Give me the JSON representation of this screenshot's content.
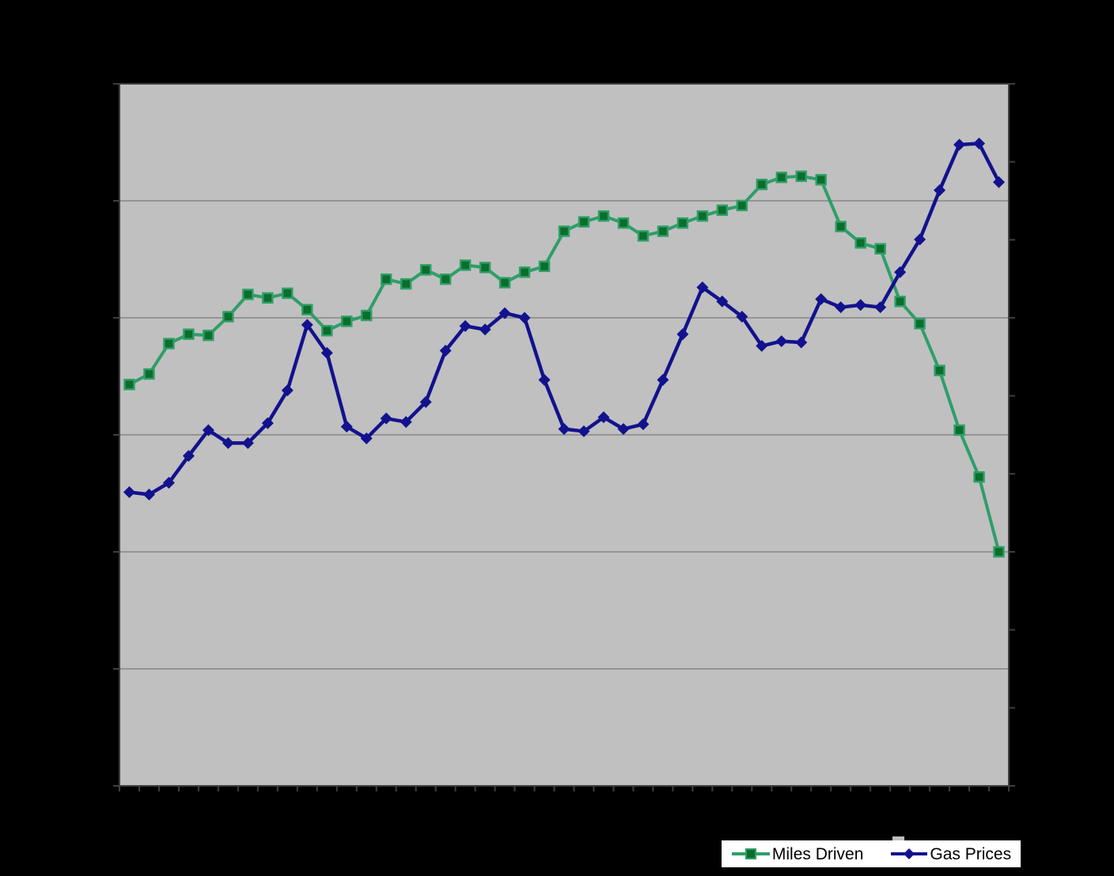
{
  "chart_data": {
    "type": "line",
    "title": "",
    "xlabel": "",
    "ylabel": "",
    "x_count": 45,
    "x_tick_labels_visible": false,
    "y_tick_labels_visible": false,
    "ylim": [
      0,
      6
    ],
    "y_major_divisions": 6,
    "secondary_y_divisions": 9,
    "grid": true,
    "legend_position": "bottom",
    "series": [
      {
        "name": "Miles Driven",
        "marker": "square",
        "values": [
          3.43,
          3.52,
          3.78,
          3.86,
          3.85,
          4.01,
          4.2,
          4.17,
          4.21,
          4.07,
          3.89,
          3.97,
          4.02,
          4.33,
          4.29,
          4.41,
          4.33,
          4.45,
          4.43,
          4.3,
          4.39,
          4.44,
          4.74,
          4.82,
          4.87,
          4.81,
          4.7,
          4.74,
          4.81,
          4.87,
          4.92,
          4.96,
          5.14,
          5.2,
          5.21,
          5.18,
          4.78,
          4.64,
          4.59,
          4.14,
          3.95,
          3.55,
          3.04,
          2.64,
          2.0
        ]
      },
      {
        "name": "Gas Prices",
        "marker": "diamond",
        "values": [
          2.51,
          2.49,
          2.59,
          2.82,
          3.04,
          2.93,
          2.93,
          3.1,
          3.38,
          3.94,
          3.7,
          3.07,
          2.97,
          3.14,
          3.11,
          3.28,
          3.72,
          3.93,
          3.9,
          4.04,
          4.0,
          3.47,
          3.05,
          3.03,
          3.15,
          3.05,
          3.09,
          3.47,
          3.86,
          4.26,
          4.14,
          4.01,
          3.76,
          3.8,
          3.79,
          4.16,
          4.09,
          4.11,
          4.09,
          4.39,
          4.67,
          5.09,
          5.48,
          5.49,
          5.16
        ]
      }
    ]
  },
  "colors": {
    "page_bg": "#000000",
    "plot_bg": "#c0c0c0",
    "gridline": "#868686",
    "axis": "#3f3f3f",
    "miles_line": "#2e9e68",
    "miles_marker_fill": "#0b6e2b",
    "gas_line": "#12128e",
    "legend_bg": "#ffffff",
    "legend_border": "#000000",
    "legend_text": "#000000"
  }
}
